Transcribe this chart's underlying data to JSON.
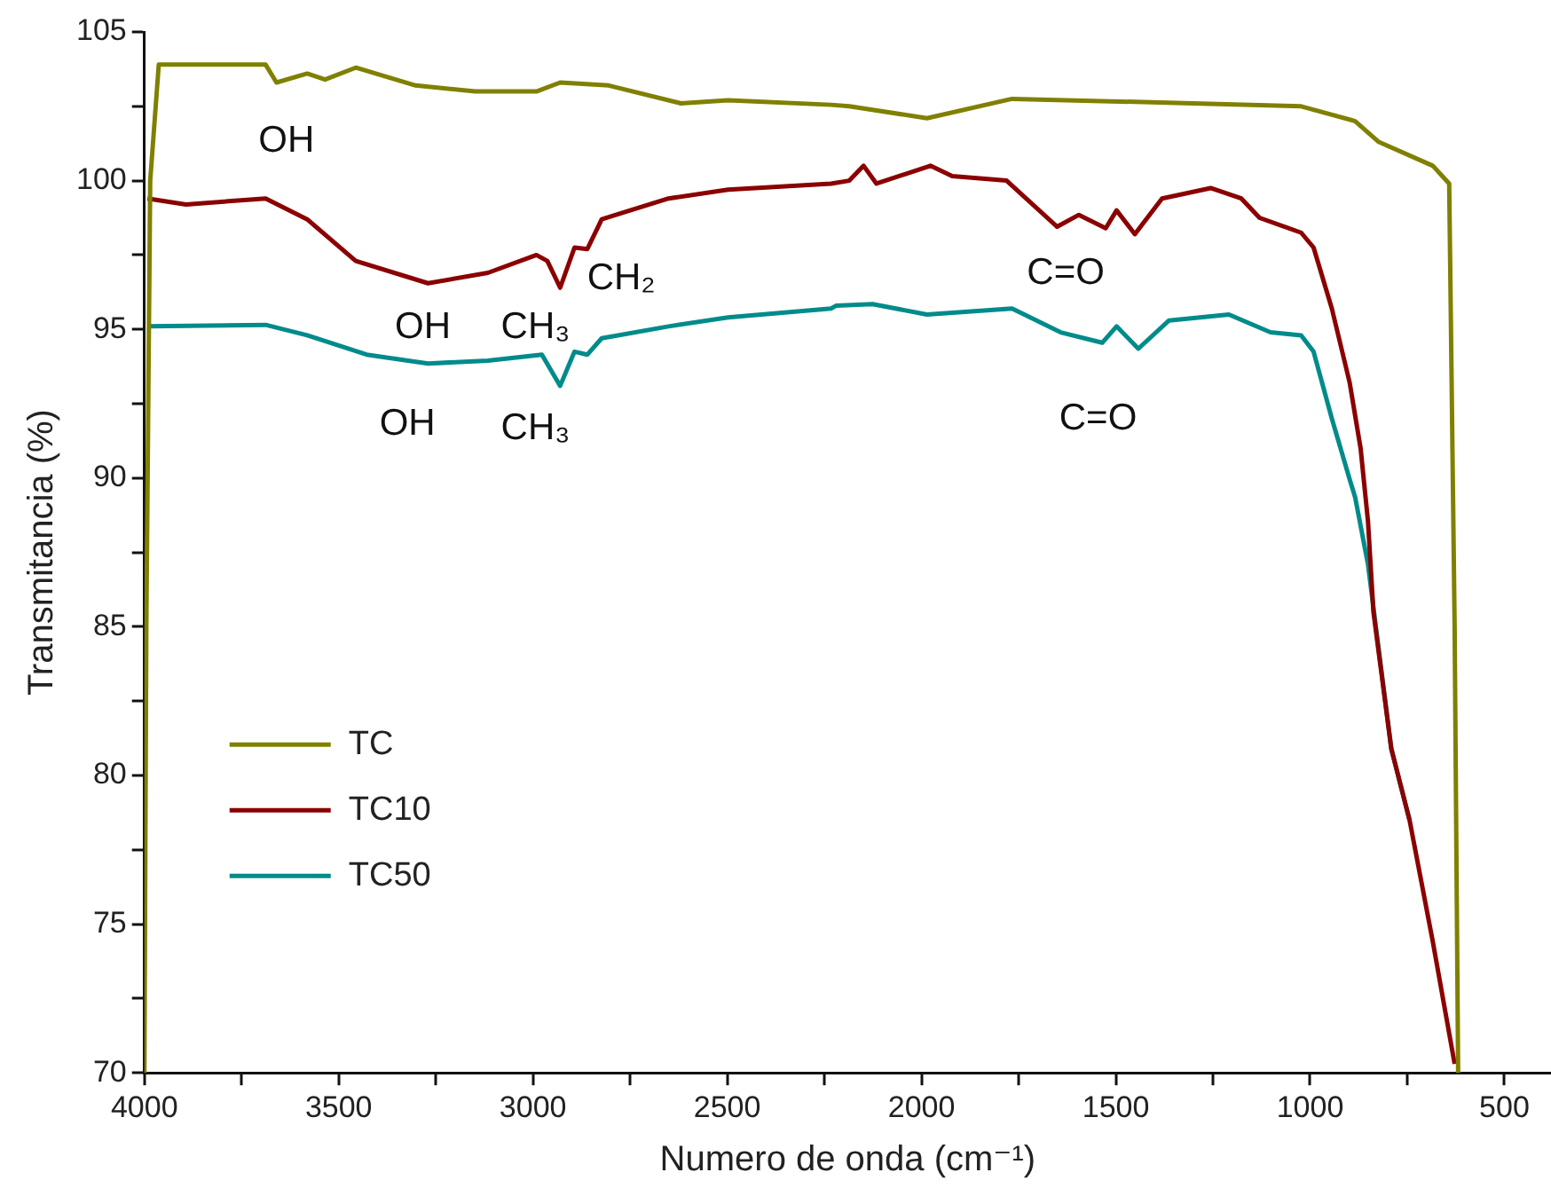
{
  "chart_data": {
    "type": "line",
    "xlabel": "Numero de onda (cm⁻¹)",
    "ylabel": "Transmitancia (%)",
    "xlim": [
      4000,
      380
    ],
    "ylim": [
      70,
      105
    ],
    "xticks": [
      4000,
      {
        "value": 3750,
        "label": null
      },
      3500,
      {
        "value": 3250,
        "label": null
      },
      3000,
      {
        "value": 2750,
        "label": null
      },
      2500,
      {
        "value": 2250,
        "label": null
      },
      2000,
      {
        "value": 1750,
        "label": null
      },
      1500,
      {
        "value": 1250,
        "label": null
      },
      1000,
      {
        "value": 750,
        "label": null
      },
      500
    ],
    "yticks": [
      70,
      {
        "value": 72.5,
        "label": null
      },
      75,
      {
        "value": 77.5,
        "label": null
      },
      80,
      {
        "value": 82.5,
        "label": null
      },
      85,
      {
        "value": 87.5,
        "label": null
      },
      90,
      {
        "value": 92.5,
        "label": null
      },
      95,
      {
        "value": 97.5,
        "label": null
      },
      100,
      {
        "value": 102.5,
        "label": null
      },
      105
    ],
    "grid": false,
    "legend": "bottom left",
    "marker": "none",
    "line_style": "solid",
    "series": [
      {
        "name": "TC",
        "color": "#808000",
        "x": [
          4000,
          3995,
          3985,
          3963,
          3688,
          3660,
          3581,
          3535,
          3456,
          3302,
          3149,
          2991,
          2930,
          2805,
          2619,
          2498,
          2233,
          2186,
          1986,
          1767,
          1302,
          1023,
          884,
          823,
          684,
          642,
          628,
          619
        ],
        "values": [
          70,
          85,
          100,
          103.9,
          103.9,
          103.3,
          103.6,
          103.4,
          103.8,
          103.2,
          103.0,
          103.0,
          103.3,
          103.2,
          102.6,
          102.7,
          102.55,
          102.5,
          102.1,
          102.75,
          102.6,
          102.5,
          102.0,
          101.3,
          100.5,
          99.9,
          85,
          70
        ]
      },
      {
        "name": "TC10",
        "color": "#8b0000",
        "x": [
          3992,
          3893,
          3688,
          3581,
          3456,
          3270,
          3116,
          2991,
          2963,
          2930,
          2893,
          2860,
          2823,
          2651,
          2498,
          2233,
          2186,
          2149,
          2116,
          1977,
          1921,
          1781,
          1651,
          1595,
          1526,
          1498,
          1451,
          1381,
          1256,
          1177,
          1130,
          1023,
          991,
          944,
          898,
          870,
          851,
          837,
          791,
          744,
          684,
          628
        ],
        "values": [
          99.4,
          99.2,
          99.4,
          98.7,
          97.3,
          96.55,
          96.9,
          97.5,
          97.3,
          96.4,
          97.75,
          97.7,
          98.7,
          99.4,
          99.7,
          99.9,
          100.0,
          100.5,
          99.9,
          100.5,
          100.15,
          100.0,
          98.45,
          98.85,
          98.4,
          99.0,
          98.2,
          99.4,
          99.75,
          99.4,
          98.75,
          98.25,
          97.75,
          95.7,
          93.2,
          91.0,
          88.55,
          85.5,
          80.9,
          78.5,
          74.4,
          70.3
        ]
      },
      {
        "name": "TC50",
        "color": "#008b8b",
        "x": [
          3991,
          3688,
          3581,
          3428,
          3270,
          3116,
          2977,
          2930,
          2893,
          2860,
          2823,
          2651,
          2498,
          2233,
          2219,
          2126,
          1986,
          1767,
          1642,
          1535,
          1498,
          1442,
          1363,
          1209,
          1102,
          1023,
          991,
          944,
          898,
          884,
          851,
          791,
          744
        ],
        "values": [
          95.1,
          95.15,
          94.8,
          94.15,
          93.85,
          93.95,
          94.15,
          93.1,
          94.25,
          94.15,
          94.7,
          95.1,
          95.4,
          95.7,
          95.8,
          95.85,
          95.5,
          95.7,
          94.9,
          94.55,
          95.1,
          94.35,
          95.3,
          95.5,
          94.9,
          94.8,
          94.25,
          92.0,
          89.95,
          89.35,
          87.1,
          80.9,
          78.5
        ]
      }
    ],
    "annotations": [
      "OH",
      "OH",
      "CH₃",
      "CH₂",
      "C=O",
      "OH",
      "CH₃",
      "C=O"
    ]
  }
}
